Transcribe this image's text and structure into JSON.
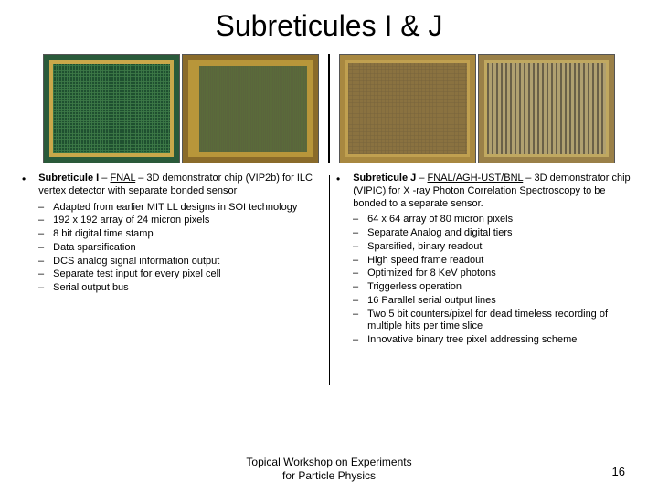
{
  "title": "Subreticules I & J",
  "left": {
    "heading_html": "<b>Subreticule I</b> – <u>FNAL</u> – 3D demonstrator chip (VIP2b) for ILC vertex detector with separate bonded sensor",
    "items": [
      "Adapted from earlier MIT LL designs in SOI technology",
      "192 x 192 array of 24 micron pixels",
      "8 bit digital time stamp",
      "Data sparsification",
      "DCS analog signal information output",
      "Separate test input for every pixel cell",
      "Serial output bus"
    ]
  },
  "right": {
    "heading_html": "<b>Subreticule J</b> – <u>FNAL/AGH-UST/BNL</u> – 3D demonstrator chip (VIPIC) for X -ray Photon Correlation Spectroscopy to be bonded to a separate sensor.",
    "items": [
      "64 x 64 array of 80 micron pixels",
      "Separate Analog and digital tiers",
      "Sparsified, binary readout",
      "High speed frame readout",
      "Optimized for 8 KeV photons",
      "Triggerless operation",
      "16 Parallel serial output lines",
      "Two 5 bit counters/pixel for dead timeless recording of multiple hits per time slice",
      "Innovative binary tree pixel addressing scheme"
    ]
  },
  "footer_line1": "Topical Workshop on Experiments",
  "footer_line2": "for Particle Physics",
  "page_number": "16"
}
